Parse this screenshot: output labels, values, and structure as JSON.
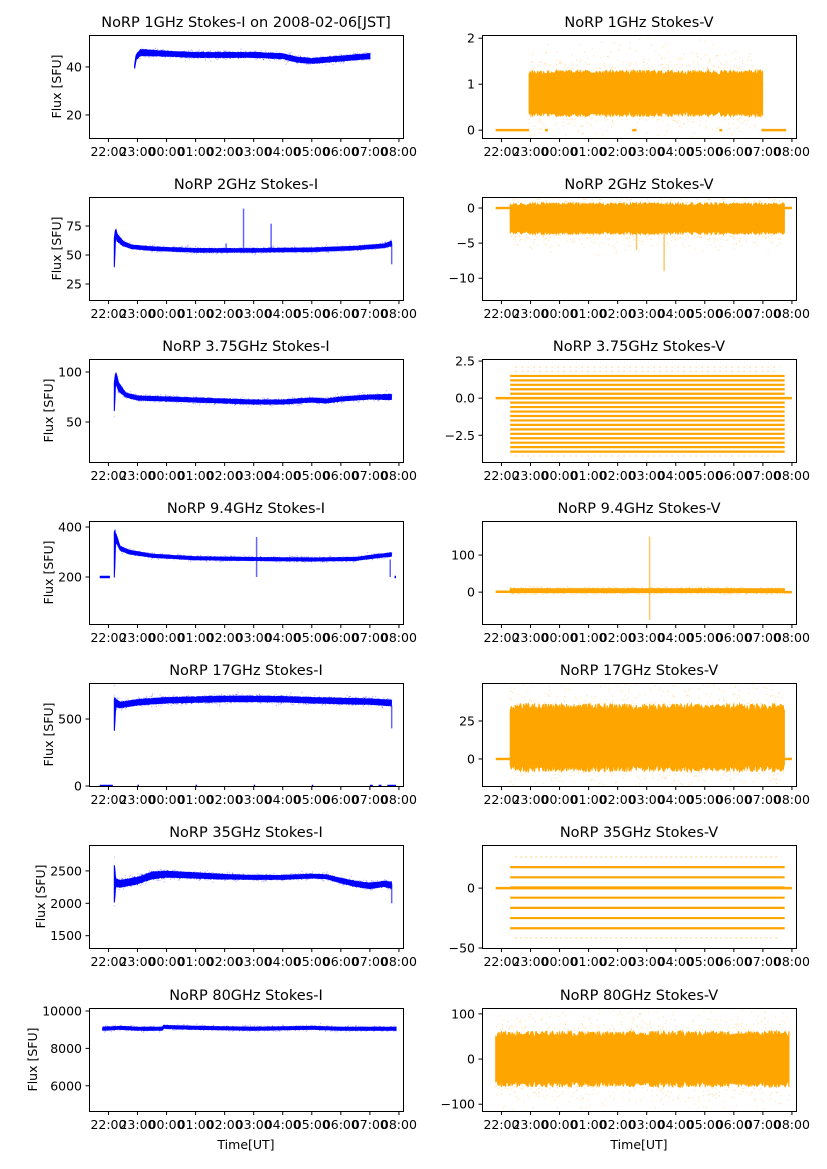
{
  "figure": {
    "x_axis_label": "Time[UT]",
    "y_axis_label": "Flux [SFU]",
    "x_tick_labels": [
      "22:00",
      "23:00",
      "00:00",
      "01:00",
      "02:00",
      "03:00",
      "04:00",
      "05:00",
      "06:00",
      "07:00",
      "08:00"
    ]
  },
  "colors": {
    "stokes_i": "#0000ff",
    "stokes_v": "#ffa500"
  },
  "chart_data": [
    {
      "type": "scatter",
      "panel": "1ghz-i",
      "title": "NoRP 1GHz Stokes-I on 2008-02-06[JST]",
      "xlabel": "",
      "ylabel": "Flux [SFU]",
      "xlim_hours_from_2200": [
        -0.67,
        10.14
      ],
      "ylim": [
        10.4,
        53.3
      ],
      "yticks": [
        20,
        40
      ],
      "ytick_labels": [
        "20",
        "40"
      ],
      "color": "#0000ff",
      "band": "envelope",
      "x_hours": [
        0.9,
        0.95,
        1.1,
        2,
        3,
        4,
        5,
        6,
        6.5,
        7,
        7.5,
        8,
        8.5,
        9
      ],
      "center": [
        40,
        44,
        46,
        45.5,
        45,
        45,
        45,
        44.5,
        43,
        42.5,
        43,
        43.5,
        44,
        44.5
      ],
      "halfwidth": [
        0.6,
        1,
        1.2,
        1,
        1,
        1,
        1,
        1,
        1,
        1,
        1,
        1,
        1,
        1
      ],
      "flat_segments": []
    },
    {
      "type": "scatter",
      "panel": "1ghz-v",
      "title": "NoRP 1GHz Stokes-V",
      "xlabel": "",
      "ylabel": "",
      "xlim_hours_from_2200": [
        -0.67,
        10.14
      ],
      "ylim": [
        -0.17,
        2.07
      ],
      "yticks": [
        0,
        1,
        2
      ],
      "ytick_labels": [
        "0",
        "1",
        "2"
      ],
      "color": "#ffa500",
      "band": "noise",
      "x_hours": [
        0.95,
        9
      ],
      "center": [
        0.8,
        0.8
      ],
      "halfwidth": [
        0.45,
        0.45
      ],
      "flat_segments": [
        [
          -0.2,
          0.95,
          0
        ],
        [
          1.5,
          1.6,
          0
        ],
        [
          4.5,
          4.65,
          0
        ],
        [
          7.5,
          7.6,
          0
        ],
        [
          8.95,
          9.8,
          0
        ]
      ]
    },
    {
      "type": "scatter",
      "panel": "2ghz-i",
      "title": "NoRP 2GHz Stokes-I",
      "xlabel": "",
      "ylabel": "Flux [SFU]",
      "xlim_hours_from_2200": [
        -0.67,
        10.14
      ],
      "ylim": [
        11.2,
        100
      ],
      "yticks": [
        25,
        50,
        75
      ],
      "ytick_labels": [
        "25",
        "50",
        "75"
      ],
      "color": "#0000ff",
      "band": "envelope",
      "x_hours": [
        0.2,
        0.25,
        0.3,
        0.5,
        0.8,
        1.5,
        3,
        5,
        7,
        8.5,
        9.5,
        9.75
      ],
      "center": [
        52,
        70,
        65,
        60,
        57,
        55.5,
        54,
        54,
        54.5,
        56,
        58,
        60
      ],
      "halfwidth": [
        12,
        3,
        3,
        2,
        1.5,
        1.5,
        1.5,
        1.5,
        1.5,
        1.5,
        1.5,
        2
      ],
      "spikes": [
        [
          4.65,
          55,
          90
        ],
        [
          5.6,
          55,
          77
        ],
        [
          4.05,
          55,
          60
        ],
        [
          9.75,
          42,
          60
        ]
      ],
      "flat_segments": []
    },
    {
      "type": "scatter",
      "panel": "2ghz-v",
      "title": "NoRP 2GHz Stokes-V",
      "xlabel": "",
      "ylabel": "",
      "xlim_hours_from_2200": [
        -0.67,
        10.14
      ],
      "ylim": [
        -13.1,
        1.57
      ],
      "yticks": [
        -10,
        -5,
        0
      ],
      "ytick_labels": [
        "−10",
        "−5",
        "0"
      ],
      "color": "#ffa500",
      "band": "noise",
      "x_hours": [
        0.3,
        9.75
      ],
      "center": [
        -1.5,
        -1.5
      ],
      "halfwidth": [
        2.0,
        2.0
      ],
      "spikes": [
        [
          4.65,
          -3,
          -6
        ],
        [
          5.6,
          -3,
          -9
        ]
      ],
      "flat_segments": [
        [
          -0.2,
          0.3,
          0
        ],
        [
          9.75,
          10.0,
          0
        ]
      ]
    },
    {
      "type": "scatter",
      "panel": "3.75ghz-i",
      "title": "NoRP 3.75GHz Stokes-I",
      "xlabel": "",
      "ylabel": "Flux [SFU]",
      "xlim_hours_from_2200": [
        -0.67,
        10.14
      ],
      "ylim": [
        10,
        113
      ],
      "yticks": [
        50,
        100
      ],
      "ytick_labels": [
        "50",
        "100"
      ],
      "color": "#0000ff",
      "band": "envelope",
      "x_hours": [
        0.2,
        0.25,
        0.35,
        0.6,
        1.0,
        2,
        4,
        5,
        6,
        7,
        7.5,
        8,
        9,
        9.75
      ],
      "center": [
        75,
        95,
        85,
        77,
        74,
        73,
        71,
        70,
        70,
        72,
        71,
        73,
        75,
        75
      ],
      "halfwidth": [
        15,
        5,
        4,
        2,
        2,
        2,
        2,
        2,
        2,
        2,
        2,
        2,
        2,
        2.5
      ],
      "flat_segments": []
    },
    {
      "type": "scatter",
      "panel": "3.75ghz-v",
      "title": "NoRP 3.75GHz Stokes-V",
      "xlabel": "",
      "ylabel": "",
      "xlim_hours_from_2200": [
        -0.67,
        10.14
      ],
      "ylim": [
        -4.3,
        2.64
      ],
      "yticks": [
        -2.5,
        0.0,
        2.5
      ],
      "ytick_labels": [
        "−2.5",
        "0.0",
        "2.5"
      ],
      "color": "#ffa500",
      "band": "quantized",
      "x_hours": [
        0.3,
        9.75
      ],
      "levels": [
        -3.6,
        -3.3,
        -3.0,
        -2.7,
        -2.4,
        -2.1,
        -1.8,
        -1.5,
        -1.2,
        -0.9,
        -0.6,
        -0.3,
        0.0,
        0.3,
        0.6,
        0.9,
        1.2,
        1.5
      ],
      "flat_segments": [
        [
          -0.2,
          10.0,
          0
        ]
      ]
    },
    {
      "type": "scatter",
      "panel": "9.4ghz-i",
      "title": "NoRP 9.4GHz Stokes-I",
      "xlabel": "",
      "ylabel": "Flux [SFU]",
      "xlim_hours_from_2200": [
        -0.67,
        10.14
      ],
      "ylim": [
        12,
        424
      ],
      "yticks": [
        200,
        400
      ],
      "ytick_labels": [
        "200",
        "400"
      ],
      "color": "#0000ff",
      "band": "envelope",
      "x_hours": [
        0.2,
        0.25,
        0.4,
        0.7,
        1.5,
        3,
        5,
        7,
        8.5,
        9.2,
        9.75
      ],
      "center": [
        290,
        360,
        315,
        300,
        285,
        275,
        272,
        270,
        272,
        283,
        290
      ],
      "halfwidth": [
        90,
        15,
        8,
        7,
        6,
        6,
        6,
        6,
        6,
        6,
        7
      ],
      "spikes": [
        [
          5.1,
          200,
          360
        ],
        [
          9.7,
          200,
          270
        ]
      ],
      "flat_segments": [
        [
          -0.3,
          0.05,
          200
        ],
        [
          9.85,
          9.9,
          200
        ]
      ]
    },
    {
      "type": "scatter",
      "panel": "9.4ghz-v",
      "title": "NoRP 9.4GHz Stokes-V",
      "xlabel": "",
      "ylabel": "",
      "xlim_hours_from_2200": [
        -0.67,
        10.14
      ],
      "ylim": [
        -86,
        192
      ],
      "yticks": [
        0,
        100
      ],
      "ytick_labels": [
        "0",
        "100"
      ],
      "color": "#ffa500",
      "band": "noise",
      "x_hours": [
        0.3,
        9.75
      ],
      "center": [
        4,
        4
      ],
      "halfwidth": [
        5,
        5
      ],
      "spikes": [
        [
          5.1,
          -75,
          150
        ]
      ],
      "flat_segments": [
        [
          -0.2,
          0.3,
          1
        ],
        [
          9.75,
          10.0,
          0
        ]
      ]
    },
    {
      "type": "scatter",
      "panel": "17ghz-i",
      "title": "NoRP 17GHz Stokes-I",
      "xlabel": "",
      "ylabel": "Flux [SFU]",
      "xlim_hours_from_2200": [
        -0.67,
        10.14
      ],
      "ylim": [
        0,
        769
      ],
      "yticks": [
        0,
        500
      ],
      "ytick_labels": [
        "0",
        "500"
      ],
      "color": "#0000ff",
      "band": "envelope",
      "x_hours": [
        0.2,
        0.25,
        0.4,
        1,
        2,
        3,
        4,
        5,
        6,
        7,
        8,
        9,
        9.75
      ],
      "center": [
        530,
        620,
        605,
        625,
        640,
        645,
        650,
        650,
        648,
        640,
        635,
        630,
        620
      ],
      "halfwidth": [
        130,
        25,
        20,
        20,
        20,
        20,
        20,
        20,
        20,
        20,
        20,
        20,
        20
      ],
      "spikes": [
        [
          9.75,
          430,
          600
        ]
      ],
      "flat_segments": [
        [
          -0.3,
          0.15,
          0
        ],
        [
          1.0,
          1.05,
          0
        ],
        [
          3.0,
          3.05,
          0
        ],
        [
          5.0,
          5.05,
          0
        ],
        [
          7.0,
          7.05,
          0
        ],
        [
          9.0,
          9.1,
          0
        ],
        [
          9.3,
          9.4,
          0
        ],
        [
          9.6,
          9.9,
          0
        ]
      ]
    },
    {
      "type": "scatter",
      "panel": "17ghz-v",
      "title": "NoRP 17GHz Stokes-V",
      "xlabel": "",
      "ylabel": "",
      "xlim_hours_from_2200": [
        -0.67,
        10.14
      ],
      "ylim": [
        -17.8,
        50
      ],
      "yticks": [
        0,
        25
      ],
      "ytick_labels": [
        "0",
        "25"
      ],
      "color": "#ffa500",
      "band": "noise",
      "x_hours": [
        0.3,
        9.75
      ],
      "center": [
        14,
        14
      ],
      "halfwidth": [
        20,
        20
      ],
      "flat_segments": [
        [
          -0.2,
          0.3,
          0
        ],
        [
          9.75,
          10.0,
          0
        ]
      ]
    },
    {
      "type": "scatter",
      "panel": "35ghz-i",
      "title": "NoRP 35GHz Stokes-I",
      "xlabel": "",
      "ylabel": "Flux [SFU]",
      "xlim_hours_from_2200": [
        -0.67,
        10.14
      ],
      "ylim": [
        1310,
        2900
      ],
      "yticks": [
        1500,
        2000,
        2500
      ],
      "ytick_labels": [
        "1500",
        "2000",
        "2500"
      ],
      "color": "#0000ff",
      "band": "envelope",
      "x_hours": [
        0.2,
        0.25,
        0.4,
        1,
        1.5,
        2,
        3,
        4,
        5,
        6,
        7,
        7.5,
        8,
        8.5,
        9,
        9.5,
        9.75
      ],
      "center": [
        2300,
        2320,
        2300,
        2350,
        2430,
        2450,
        2430,
        2410,
        2400,
        2400,
        2420,
        2410,
        2350,
        2300,
        2270,
        2300,
        2280
      ],
      "halfwidth": [
        300,
        60,
        50,
        50,
        50,
        45,
        40,
        35,
        30,
        30,
        30,
        30,
        35,
        40,
        40,
        40,
        45
      ],
      "spikes": [
        [
          9.75,
          2000,
          2300
        ]
      ],
      "flat_segments": []
    },
    {
      "type": "scatter",
      "panel": "35ghz-v",
      "title": "NoRP 35GHz Stokes-V",
      "xlabel": "",
      "ylabel": "",
      "xlim_hours_from_2200": [
        -0.67,
        10.14
      ],
      "ylim": [
        -50,
        36
      ],
      "yticks": [
        -50,
        0
      ],
      "ytick_labels": [
        "−50",
        "0"
      ],
      "color": "#ffa500",
      "band": "quantized",
      "x_hours": [
        0.3,
        9.75
      ],
      "levels": [
        -33.5,
        -25,
        -16.5,
        -8,
        0.5,
        9,
        17.5
      ],
      "sparse_levels": [
        -41.5,
        26
      ],
      "flat_segments": [
        [
          -0.2,
          10.0,
          0
        ]
      ]
    },
    {
      "type": "scatter",
      "panel": "80ghz-i",
      "title": "NoRP 80GHz Stokes-I",
      "xlabel": "Time[UT]",
      "ylabel": "Flux [SFU]",
      "xlim_hours_from_2200": [
        -0.67,
        10.14
      ],
      "ylim": [
        4650,
        10160
      ],
      "yticks": [
        6000,
        8000,
        10000
      ],
      "ytick_labels": [
        "6000",
        "8000",
        "10000"
      ],
      "color": "#0000ff",
      "band": "envelope",
      "x_hours": [
        -0.2,
        0.4,
        1.0,
        1.85,
        1.9,
        3,
        5,
        7,
        8,
        9,
        9.9
      ],
      "center": [
        9050,
        9100,
        9050,
        9050,
        9150,
        9100,
        9050,
        9100,
        9050,
        9050,
        9050
      ],
      "halfwidth": [
        80,
        80,
        80,
        80,
        80,
        80,
        80,
        80,
        80,
        80,
        80
      ],
      "flat_segments": []
    },
    {
      "type": "scatter",
      "panel": "80ghz-v",
      "title": "NoRP 80GHz Stokes-V",
      "xlabel": "Time[UT]",
      "ylabel": "",
      "xlim_hours_from_2200": [
        -0.67,
        10.14
      ],
      "ylim": [
        -115,
        113
      ],
      "yticks": [
        -100,
        0,
        100
      ],
      "ytick_labels": [
        "−100",
        "0",
        "100"
      ],
      "color": "#ffa500",
      "band": "noise",
      "x_hours": [
        -0.2,
        9.9
      ],
      "center": [
        0,
        0
      ],
      "halfwidth": [
        55,
        55
      ],
      "flat_segments": []
    }
  ]
}
